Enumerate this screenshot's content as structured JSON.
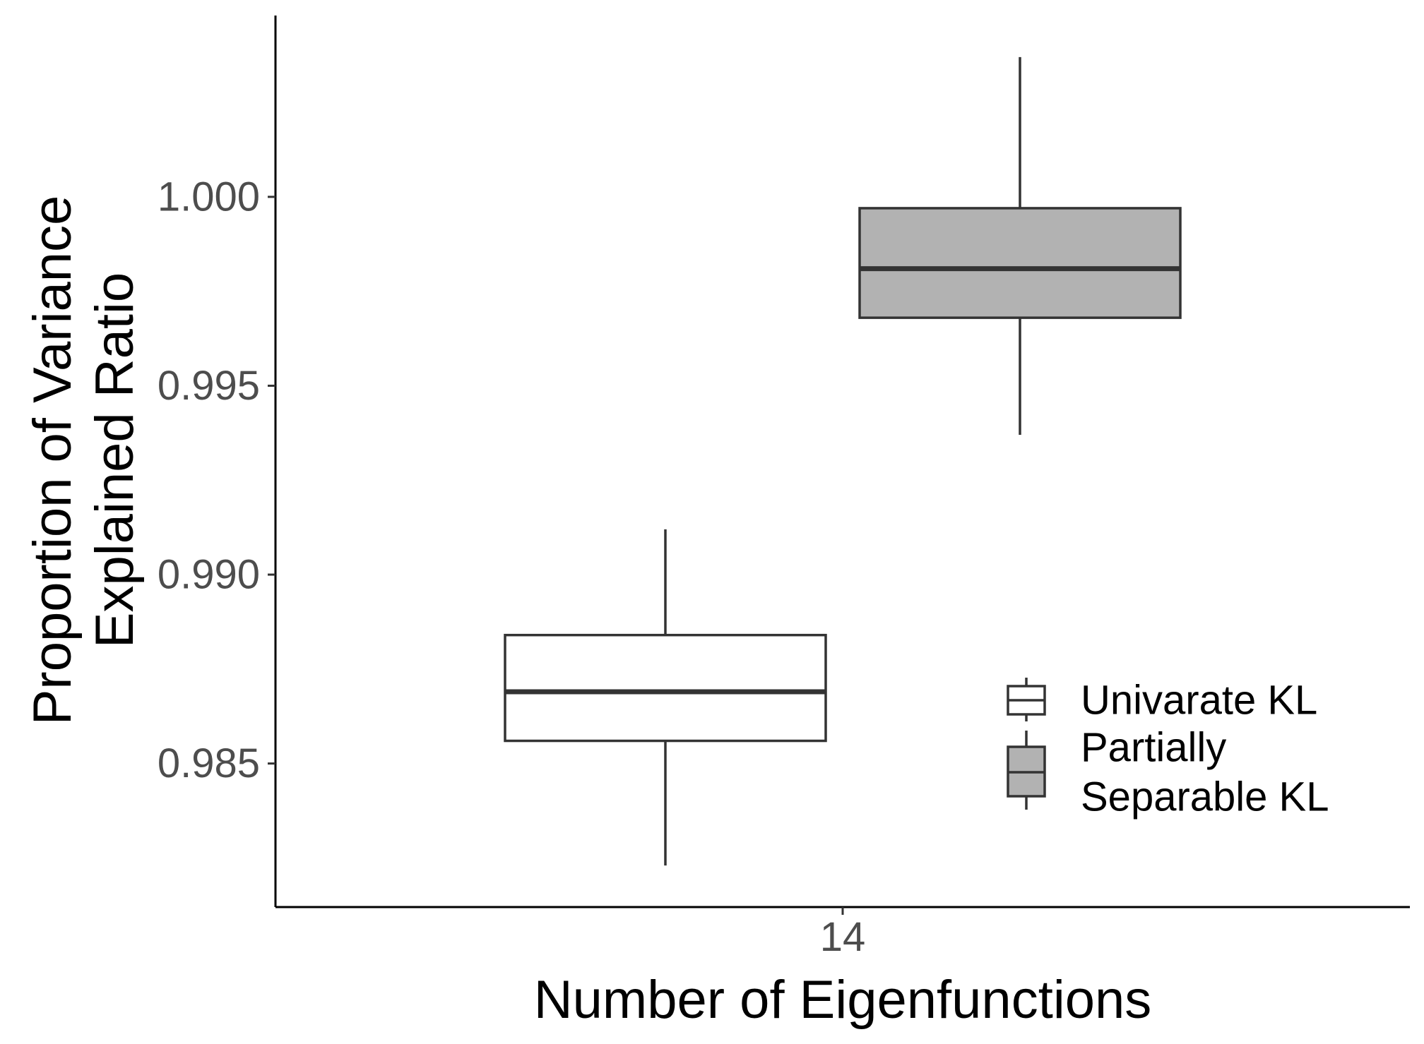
{
  "chart_data": {
    "type": "boxplot",
    "title": "",
    "xlabel": "Number of Eigenfunctions",
    "ylabel_lines": [
      "Proportion of Variance",
      "Explained Ratio"
    ],
    "categories": [
      "14"
    ],
    "ylim": [
      0.9812,
      1.0048
    ],
    "yticks": [
      0.985,
      0.99,
      0.995,
      1.0
    ],
    "ytick_labels": [
      "0.985",
      "0.990",
      "0.995",
      "1.000"
    ],
    "grid": false,
    "legend_position": "bottom-right-inside",
    "series": [
      {
        "name": "Univarate KL",
        "legend_lines": [
          "Univarate KL"
        ],
        "fill": "#ffffff",
        "category": "14",
        "whisker_low": 0.9823,
        "q1": 0.9856,
        "median": 0.9869,
        "q3": 0.9884,
        "whisker_high": 0.9912
      },
      {
        "name": "Partially Separable KL",
        "legend_lines": [
          "Partially",
          "Separable KL"
        ],
        "fill": "#b2b2b2",
        "category": "14",
        "whisker_low": 0.9937,
        "q1": 0.9968,
        "median": 0.9981,
        "q3": 0.9997,
        "whisker_high": 1.0037
      }
    ]
  }
}
